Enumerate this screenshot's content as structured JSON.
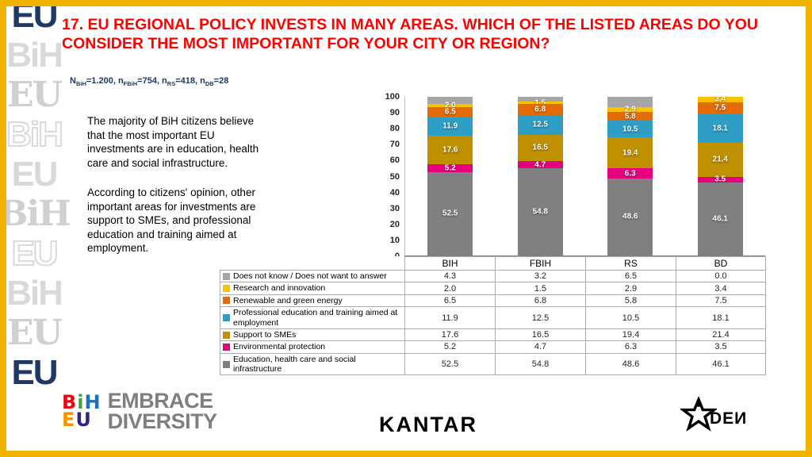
{
  "slide": {
    "title": "17. EU REGIONAL POLICY INVESTS IN MANY AREAS. WHICH OF THE LISTED AREAS DO YOU CONSIDER THE MOST IMPORTANT FOR YOUR CITY OR REGION?",
    "note_parts": [
      "N",
      "BiH",
      "=1.200, n",
      "FBiH",
      "=754, n",
      "RS",
      "=418, n",
      "DB",
      "=28"
    ],
    "body_paragraphs": [
      "The majority of BiH citizens believe that the most important EU investments are in education, health care and social infrastructure.",
      "According to citizens' opinion, other important areas for investments are support to SMEs, and professional education and training aimed at employment."
    ]
  },
  "decorative": {
    "letters": [
      {
        "text": "EU",
        "color": "#1F3864",
        "style": "solid"
      },
      {
        "text": "BiH",
        "color": "#D9D9D9",
        "style": "solid"
      },
      {
        "text": "EU",
        "color": "#D0D0D0",
        "style": "serif"
      },
      {
        "text": "BiH",
        "color": "#DADADA",
        "style": "outline"
      },
      {
        "text": "EU",
        "color": "#D9D9D9",
        "style": "solid"
      },
      {
        "text": "BiH",
        "color": "#D0D0D0",
        "style": "serif"
      },
      {
        "text": "EU",
        "color": "#DADADA",
        "style": "outline"
      },
      {
        "text": "BiH",
        "color": "#D9D9D9",
        "style": "solid"
      },
      {
        "text": "EU",
        "color": "#D0D0D0",
        "style": "serif"
      },
      {
        "text": "EU",
        "color": "#1F3864",
        "style": "solid"
      }
    ]
  },
  "chart_data": {
    "type": "bar",
    "stacked": true,
    "title": "",
    "xlabel": "",
    "ylabel": "",
    "ylim": [
      0,
      100
    ],
    "yticks": [
      0,
      10,
      20,
      30,
      40,
      50,
      60,
      70,
      80,
      90,
      100
    ],
    "legend_position": "table-below",
    "grid": false,
    "categories": [
      "BIH",
      "FBIH",
      "RS",
      "BD"
    ],
    "series": [
      {
        "name": "Does not know / Does not want to answer",
        "color": "#A6A6A6",
        "values": [
          4.3,
          3.2,
          6.5,
          0.0
        ],
        "show_labels": false
      },
      {
        "name": "Research and innovation",
        "color": "#FFC000",
        "values": [
          2.0,
          1.5,
          2.9,
          3.4
        ]
      },
      {
        "name": "Renewable and green energy",
        "color": "#E36C09",
        "values": [
          6.5,
          6.8,
          5.8,
          7.5
        ]
      },
      {
        "name": "Professional education and training aimed at employment",
        "color": "#2E9EC6",
        "values": [
          11.9,
          12.5,
          10.5,
          18.1
        ]
      },
      {
        "name": "Support to SMEs",
        "color": "#BF9000",
        "values": [
          17.6,
          16.5,
          19.4,
          21.4
        ]
      },
      {
        "name": "Environmental protection",
        "color": "#E6007E",
        "values": [
          5.2,
          4.7,
          6.3,
          3.5
        ]
      },
      {
        "name": "Education, health care and social infrastructure",
        "color": "#808080",
        "values": [
          52.5,
          54.8,
          48.6,
          46.1
        ]
      }
    ]
  },
  "footer": {
    "embrace_line1": "EMBRACE",
    "embrace_line2": "DIVERSITY",
    "logo_letters_top": [
      {
        "ch": "B",
        "color": "#E30613"
      },
      {
        "ch": "i",
        "color": "#3AAA35"
      },
      {
        "ch": "H",
        "color": "#1D71B8"
      }
    ],
    "logo_letters_bottom": [
      {
        "ch": "E",
        "color": "#F39200"
      },
      {
        "ch": "U",
        "color": "#312783"
      }
    ],
    "kantar": "KANTAR",
    "iden": "DEИ"
  }
}
